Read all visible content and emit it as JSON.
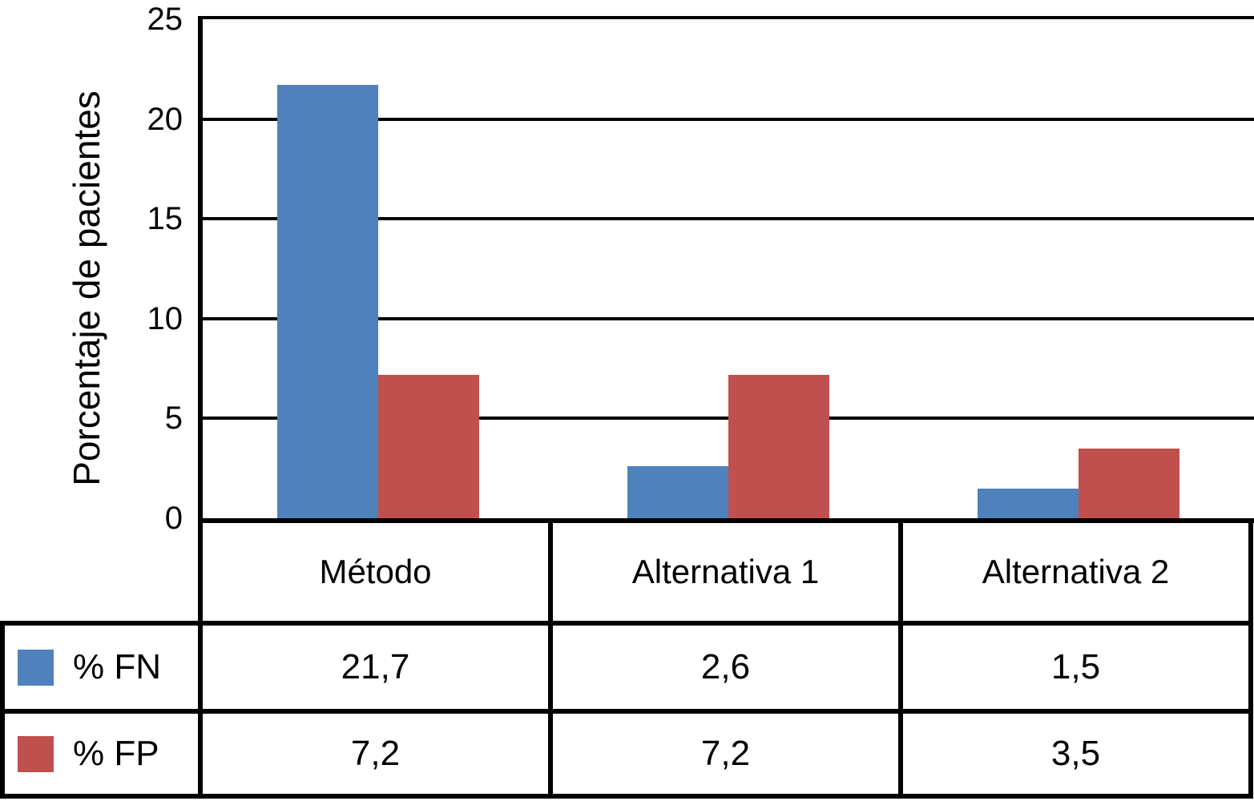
{
  "chart": {
    "y_axis_title": "Porcentaje de pacientes"
  },
  "chart_data": {
    "type": "bar",
    "categories": [
      "Método",
      "Alternativa 1",
      "Alternativa 2"
    ],
    "series": [
      {
        "name": "% FN",
        "color": "#4F81BD",
        "values": [
          21.7,
          2.6,
          1.5
        ]
      },
      {
        "name": "% FP",
        "color": "#C0504D",
        "values": [
          7.2,
          7.2,
          3.5
        ]
      }
    ],
    "title": "",
    "xlabel": "",
    "ylabel": "Porcentaje de pacientes",
    "ylim": [
      0,
      25
    ],
    "yticks": [
      0,
      5,
      10,
      15,
      20,
      25
    ],
    "grid": "horizontal",
    "legend_position": "table-left",
    "bar_width_fraction": 0.287
  },
  "table": {
    "header": [
      "Método",
      "Alternativa 1",
      "Alternativa 2"
    ],
    "rows": [
      {
        "legend": "% FN",
        "swatch_color": "#4F81BD",
        "values": [
          "21,7",
          "2,6",
          "1,5"
        ]
      },
      {
        "legend": "% FP",
        "swatch_color": "#C0504D",
        "values": [
          "7,2",
          "7,2",
          "3,5"
        ]
      }
    ]
  },
  "colors": {
    "series_fn": "#4F81BD",
    "series_fp": "#C0504D",
    "axis": "#000000",
    "background": "#FFFFFF"
  }
}
